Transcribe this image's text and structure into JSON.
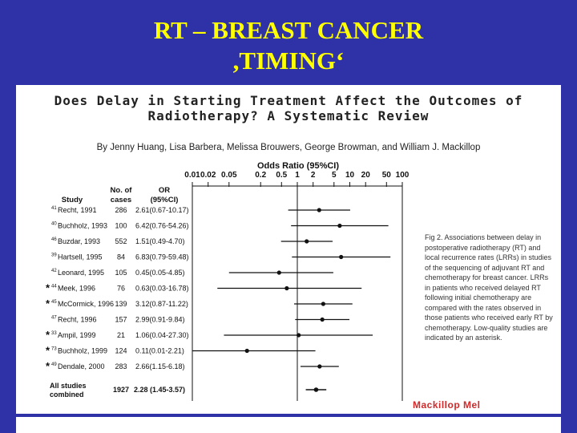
{
  "slide": {
    "title_line1": "RT – BREAST CANCER",
    "title_line2": ",TIMING‘"
  },
  "paper": {
    "title_line1": "Does Delay in Starting Treatment Affect the Outcomes of",
    "title_line2": "Radiotherapy? A Systematic Review",
    "authors": "By Jenny Huang, Lisa Barbera, Melissa Brouwers, George Browman, and William J. Mackillop"
  },
  "table": {
    "col_study": "Study",
    "col_cases": "No. of cases",
    "col_cases_line1": "No. of",
    "col_cases_line2": "cases",
    "col_or_line1": "OR",
    "col_or_line2": "(95%CI)"
  },
  "caption": "Fig 2.  Associations between delay in postoperative radiotherapy (RT) and local recurrence rates (LRRs) in studies of the sequencing of adjuvant RT and chemotherapy for breast cancer. LRRs in patients who received delayed RT following initial chemotherapy are compared with the rates observed in those patients who received early RT by chemotherapy. Low-quality studies are indicated by an asterisk.",
  "watermark": "Mackillop Mel",
  "chart_data": {
    "type": "forest",
    "title": "Odds Ratio (95%CI)",
    "x_scale": "log",
    "xlim": [
      0.01,
      100
    ],
    "ticks": [
      "0.01",
      "0.02",
      "0.05",
      "0.2",
      "0.5",
      "1",
      "2",
      "5",
      "10",
      "20",
      "50",
      "100"
    ],
    "tick_values": [
      0.01,
      0.02,
      0.05,
      0.2,
      0.5,
      1,
      2,
      5,
      10,
      20,
      50,
      100
    ],
    "rows": [
      {
        "marker": "",
        "ref": "41",
        "study": "Recht, 1991",
        "cases": "286",
        "or_text": "2.61(0.67-10.17)",
        "or": 2.61,
        "lo": 0.67,
        "hi": 10.17
      },
      {
        "marker": "",
        "ref": "40",
        "study": "Buchholz, 1993",
        "cases": "100",
        "or_text": "6.42(0.76-54.26)",
        "or": 6.42,
        "lo": 0.76,
        "hi": 54.26
      },
      {
        "marker": "",
        "ref": "46",
        "study": "Buzdar, 1993",
        "cases": "552",
        "or_text": "1.51(0.49-4.70)",
        "or": 1.51,
        "lo": 0.49,
        "hi": 4.7
      },
      {
        "marker": "",
        "ref": "39",
        "study": "Hartsell, 1995",
        "cases": "84",
        "or_text": "6.83(0.79-59.48)",
        "or": 6.83,
        "lo": 0.79,
        "hi": 59.48
      },
      {
        "marker": "",
        "ref": "42",
        "study": "Leonard, 1995",
        "cases": "105",
        "or_text": "0.45(0.05-4.85)",
        "or": 0.45,
        "lo": 0.05,
        "hi": 4.85
      },
      {
        "marker": "*",
        "ref": "44",
        "study": "Meek, 1996",
        "cases": "76",
        "or_text": "0.63(0.03-16.78)",
        "or": 0.63,
        "lo": 0.03,
        "hi": 16.78
      },
      {
        "marker": "*",
        "ref": "45",
        "study": "McCormick, 1996",
        "cases": "139",
        "or_text": "3.12(0.87-11.22)",
        "or": 3.12,
        "lo": 0.87,
        "hi": 11.22
      },
      {
        "marker": "",
        "ref": "47",
        "study": "Recht, 1996",
        "cases": "157",
        "or_text": "2.99(0.91-9.84)",
        "or": 2.99,
        "lo": 0.91,
        "hi": 9.84
      },
      {
        "marker": "*",
        "ref": "33",
        "study": "Ampil, 1999",
        "cases": "21",
        "or_text": "1.06(0.04-27.30)",
        "or": 1.06,
        "lo": 0.04,
        "hi": 27.3
      },
      {
        "marker": "*",
        "ref": "73",
        "study": "Buchholz, 1999",
        "cases": "124",
        "or_text": "0.11(0.01-2.21)",
        "or": 0.11,
        "lo": 0.01,
        "hi": 2.21
      },
      {
        "marker": "*",
        "ref": "49",
        "study": "Dendale, 2000",
        "cases": "283",
        "or_text": "2.66(1.15-6.18)",
        "or": 2.66,
        "lo": 1.15,
        "hi": 6.18
      }
    ],
    "combined": {
      "study_line1": "All studies",
      "study_line2": "combined",
      "cases": "1927",
      "or_text": "2.28 (1.45-3.57)",
      "or": 2.28,
      "lo": 1.45,
      "hi": 3.57
    }
  }
}
